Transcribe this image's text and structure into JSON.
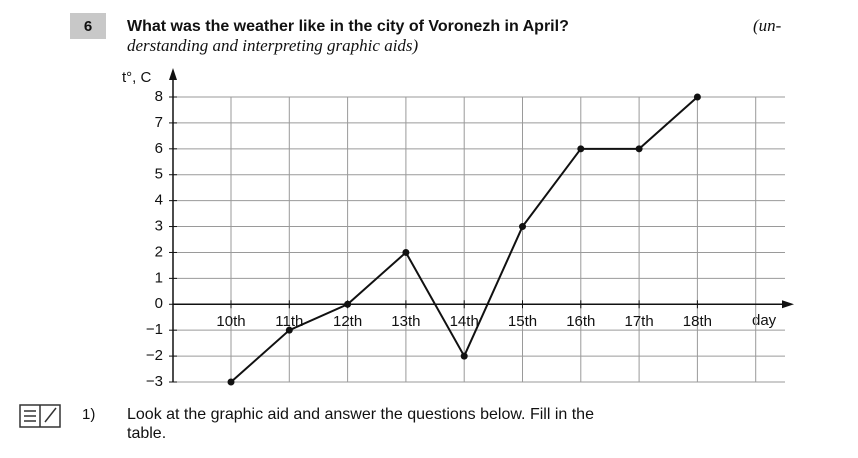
{
  "header": {
    "number": "6",
    "title": "What was the weather like in the city of Voronezh in April?",
    "subtitle_lines": [
      "(un-",
      "derstanding and interpreting graphic aids)"
    ]
  },
  "chart_data": {
    "type": "line",
    "y_label": "t°, C",
    "x_label": "day",
    "categories": [
      "10th",
      "11th",
      "12th",
      "13th",
      "14th",
      "15th",
      "16th",
      "17th",
      "18th"
    ],
    "series": [
      {
        "name": "temperature",
        "color": "#111111",
        "values": [
          -3,
          -1,
          0,
          2,
          -2,
          3,
          6,
          6,
          8
        ]
      }
    ],
    "ylim": [
      -3,
      8
    ],
    "yticks": [
      {
        "value": -3,
        "label": "−3"
      },
      {
        "value": -2,
        "label": "−2"
      },
      {
        "value": -1,
        "label": "−1"
      },
      0,
      1,
      2,
      3,
      4,
      5,
      6,
      7,
      8
    ],
    "grid": true
  },
  "task": {
    "number": "1)",
    "lines": [
      "Look at the graphic aid and answer the questions below. Fill in the",
      "table."
    ]
  }
}
